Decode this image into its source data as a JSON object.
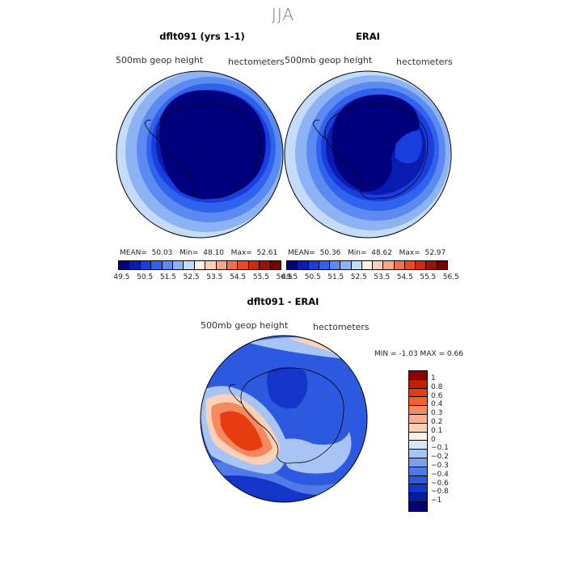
{
  "figure": {
    "title": "JJA"
  },
  "panels": [
    {
      "title": "dflt091 (yrs 1-1)",
      "variable": "500mb geop height",
      "units": "hectometers",
      "stats": {
        "mean_label": "MEAN=",
        "mean": "50.03",
        "min_label": "Min=",
        "min": "48.10",
        "max_label": "Max=",
        "max": "52.61"
      }
    },
    {
      "title": "ERAI",
      "variable": "500mb geop height",
      "units": "hectometers",
      "stats": {
        "mean_label": "MEAN=",
        "mean": "50.36",
        "min_label": "Min=",
        "min": "48.62",
        "max_label": "Max=",
        "max": "52.97"
      }
    },
    {
      "title": "dflt091 - ERAI",
      "variable": "500mb geop height",
      "units": "hectometers",
      "stats_text": "MIN =   -1.03  MAX =    0.66"
    }
  ],
  "colorbar_top": {
    "labels": [
      "49.5",
      "50.5",
      "51.5",
      "52.5",
      "53.5",
      "54.5",
      "55.5",
      "56.5"
    ],
    "colors": [
      "#00007f",
      "#0a1bb0",
      "#1a3ede",
      "#2f63ee",
      "#5a8af2",
      "#8db3f5",
      "#c4dcfa",
      "#fff0e6",
      "#fad2b8",
      "#f6a88a",
      "#f07050",
      "#e84a24",
      "#d02a10",
      "#a00f00",
      "#7a0000"
    ]
  },
  "colorbar_diff": {
    "labels": [
      "1",
      "0.8",
      "0.6",
      "0.4",
      "0.3",
      "0.2",
      "0.1",
      "0",
      "−0.1",
      "−0.2",
      "−0.3",
      "−0.4",
      "−0.6",
      "−0.8",
      "−1"
    ],
    "colors": [
      "#8b0000",
      "#c41e00",
      "#e63c10",
      "#f06030",
      "#f58a60",
      "#f8b090",
      "#fbd2b8",
      "#fff0e2",
      "#d8e6f8",
      "#a8c4f4",
      "#7aa0ee",
      "#4f7ae8",
      "#2d58e0",
      "#1436c8",
      "#061c9c",
      "#00007f"
    ]
  },
  "map_colors": {
    "deep": "#00007f",
    "level1": "#0a1bb0",
    "level2": "#1a3ede",
    "level3": "#2f63ee",
    "level4": "#5a8af2",
    "level5": "#8db3f5",
    "level6": "#c4dcfa",
    "diff_red_dark": "#e63c10",
    "diff_red_mid": "#f58a60",
    "diff_red_light": "#fbd2b8",
    "diff_neutral": "#fff0e2",
    "diff_blue_light": "#a8c4f4",
    "diff_blue_mid": "#4f7ae8",
    "diff_blue": "#2d58e0",
    "diff_blue_dark": "#1436c8"
  }
}
